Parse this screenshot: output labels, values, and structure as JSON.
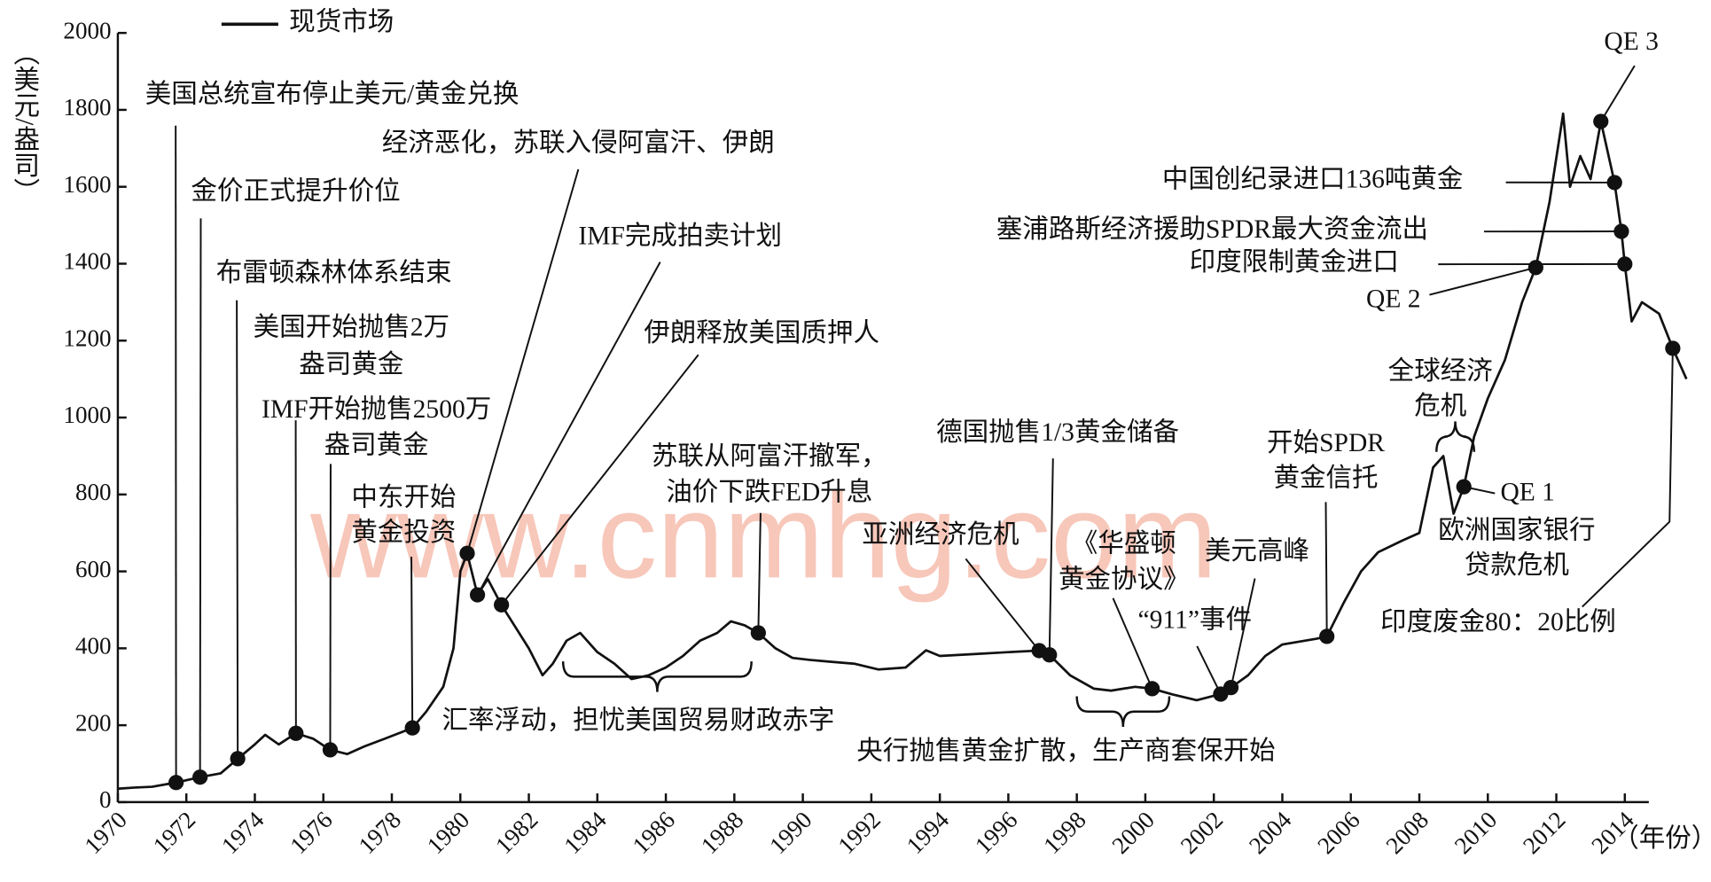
{
  "chart_data": {
    "type": "line",
    "legend": "现货市场",
    "x_label": "（年份）",
    "y_label": "（美元/盎司）",
    "watermark": "www.cnmhg.com",
    "color": "#111111",
    "xlim": [
      1970,
      2014.7
    ],
    "xticks": [
      1970,
      1972,
      1974,
      1976,
      1978,
      1980,
      1982,
      1984,
      1986,
      1988,
      1990,
      1992,
      1994,
      1996,
      1998,
      2000,
      2002,
      2004,
      2006,
      2008,
      2010,
      2012,
      2014
    ],
    "ylim": [
      0,
      2000
    ],
    "yticks": [
      0,
      200,
      400,
      600,
      800,
      1000,
      1200,
      1400,
      1600,
      1800,
      2000
    ],
    "x": [
      1970,
      1970.5,
      1971,
      1971.7,
      1972.4,
      1973,
      1973.5,
      1974,
      1974.3,
      1974.7,
      1975.2,
      1975.7,
      1976.2,
      1976.7,
      1977.2,
      1977.8,
      1978.6,
      1979,
      1979.5,
      1979.8,
      1980,
      1980.2,
      1980.5,
      1980.8,
      1981.2,
      1981.5,
      1982,
      1982.4,
      1982.7,
      1983.1,
      1983.5,
      1984,
      1984.5,
      1985,
      1985.5,
      1986,
      1986.5,
      1987,
      1987.5,
      1987.9,
      1988.3,
      1988.7,
      1989.2,
      1989.7,
      1990.2,
      1990.8,
      1991.5,
      1992.2,
      1993,
      1993.6,
      1994,
      1995,
      1996,
      1996.9,
      1997.2,
      1997.8,
      1998.5,
      1999,
      1999.7,
      2000.2,
      2000.8,
      2001.5,
      2002.2,
      2002.5,
      2003,
      2003.5,
      2004,
      2005,
      2005.3,
      2005.8,
      2006.3,
      2006.8,
      2007.5,
      2008,
      2008.4,
      2008.7,
      2009,
      2009.3,
      2009.6,
      2010,
      2010.5,
      2011,
      2011.4,
      2011.8,
      2012.2,
      2012.4,
      2012.7,
      2013,
      2013.3,
      2013.7,
      2013.9,
      2014,
      2014.2,
      2014.5,
      2015,
      2015.4,
      2015.8
    ],
    "values": [
      35,
      38,
      40,
      51,
      65,
      75,
      113,
      150,
      175,
      150,
      179,
      165,
      136,
      125,
      145,
      165,
      193,
      235,
      300,
      400,
      600,
      647,
      539,
      580,
      513,
      470,
      400,
      330,
      360,
      420,
      440,
      390,
      360,
      320,
      330,
      350,
      380,
      420,
      440,
      470,
      460,
      440,
      400,
      375,
      370,
      365,
      360,
      345,
      350,
      395,
      380,
      385,
      390,
      394,
      383,
      330,
      295,
      290,
      300,
      295,
      280,
      265,
      281,
      298,
      330,
      380,
      410,
      425,
      431,
      520,
      600,
      650,
      680,
      700,
      870,
      900,
      750,
      820,
      950,
      1050,
      1150,
      1300,
      1390,
      1560,
      1790,
      1600,
      1680,
      1620,
      1770,
      1611,
      1484,
      1399,
      1250,
      1300,
      1270,
      1180,
      1100
    ],
    "annotations": [
      {
        "label": [
          "美国总统宣布停止美元/黄金兑换"
        ],
        "x": 1971.7,
        "y": 51
      },
      {
        "label": [
          "金价正式提升价位"
        ],
        "x": 1972.4,
        "y": 65
      },
      {
        "label": [
          "布雷顿森林体系结束"
        ],
        "x": 1973.5,
        "y": 113
      },
      {
        "label": [
          "美国开始抛售2万",
          "盎司黄金"
        ],
        "x": 1975.2,
        "y": 179
      },
      {
        "label": [
          "IMF开始抛售2500万",
          "盎司黄金"
        ],
        "x": 1976.2,
        "y": 136
      },
      {
        "label": [
          "中东开始",
          "黄金投资"
        ],
        "x": 1978.6,
        "y": 193
      },
      {
        "label": [
          "经济恶化，苏联入侵阿富汗、伊朗"
        ],
        "x": 1980.2,
        "y": 647
      },
      {
        "label": [
          "IMF完成拍卖计划"
        ],
        "x": 1980.5,
        "y": 539
      },
      {
        "label": [
          "伊朗释放美国质押人"
        ],
        "x": 1981.2,
        "y": 513
      },
      {
        "label": [
          "苏联从阿富汗撤军，",
          "油价下跌FED升息"
        ],
        "x": 1988.7,
        "y": 440
      },
      {
        "label": [
          "亚洲经济危机"
        ],
        "x": 1996.9,
        "y": 394
      },
      {
        "label": [
          "德国抛售1/3黄金储备"
        ],
        "x": 1997.2,
        "y": 383
      },
      {
        "label": [
          "《华盛顿",
          "黄金协议》"
        ],
        "x": 2000.2,
        "y": 295
      },
      {
        "label": [
          "“911”事件"
        ],
        "x": 2002.2,
        "y": 281
      },
      {
        "label": [
          "美元高峰"
        ],
        "x": 2002.5,
        "y": 298
      },
      {
        "label": [
          "开始SPDR",
          "黄金信托"
        ],
        "x": 2005.3,
        "y": 431
      },
      {
        "label": [
          "QE 1"
        ],
        "x": 2009.3,
        "y": 820
      },
      {
        "label": [
          "QE 2"
        ],
        "x": 2011.4,
        "y": 1390
      },
      {
        "label": [
          "QE 3"
        ],
        "x": 2013.3,
        "y": 1770
      },
      {
        "label": [
          "中国创纪录进口136吨黄金"
        ],
        "x": 2013.7,
        "y": 1611
      },
      {
        "label": [
          "塞浦路斯经济援助SPDR最大资金流出"
        ],
        "x": 2013.9,
        "y": 1484
      },
      {
        "label": [
          "印度限制黄金进口"
        ],
        "x": 2014,
        "y": 1399
      },
      {
        "label": [
          "印度废金80：20比例"
        ],
        "x": 2015.4,
        "y": 1180
      }
    ],
    "brace_notes": [
      {
        "label": [
          "汇率浮动，担忧美国贸易财政赤字"
        ],
        "from": 1983,
        "to": 1988.5
      },
      {
        "label": [
          "央行抛售黄金扩散，生产商套保开始"
        ],
        "from": 1998,
        "to": 2000.7
      },
      {
        "label": [
          "全球经济",
          "危机"
        ],
        "from": 2008.5,
        "to": 2009.6
      }
    ],
    "notes": [
      {
        "label": [
          "欧洲国家银行",
          "贷款危机"
        ]
      }
    ]
  }
}
